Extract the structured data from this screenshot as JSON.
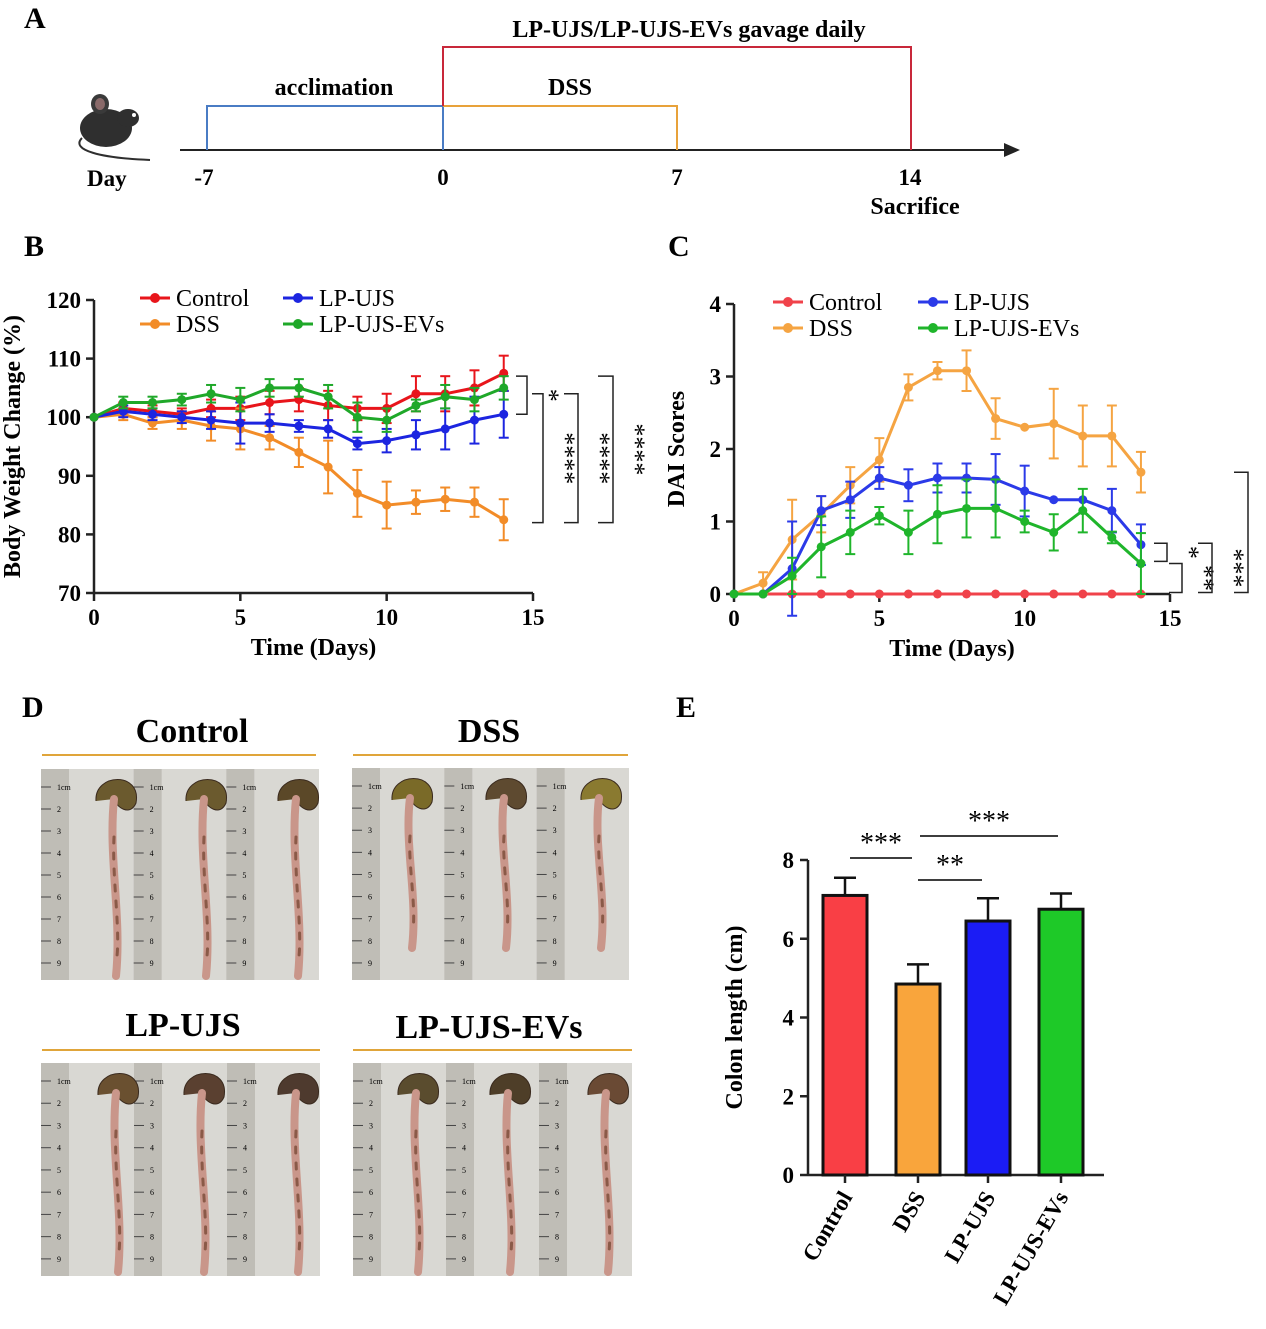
{
  "panelA": {
    "label": "A",
    "gavage": "LP-UJS/LP-UJS-EVs gavage daily",
    "acclimation": "acclimation",
    "dss": "DSS",
    "day": "Day",
    "ticks": [
      "-7",
      "0",
      "7",
      "14"
    ],
    "sacrifice": "Sacrifice",
    "colors": {
      "acclimation": "#4a7cc4",
      "dss": "#e8a23a",
      "gavage": "#c8283a"
    }
  },
  "panelD": {
    "label": "D",
    "groups": [
      "Control",
      "DSS",
      "LP-UJS",
      "LP-UJS-EVs"
    ],
    "ruler_marks": [
      "1cm",
      "2",
      "3",
      "4",
      "5",
      "6",
      "7",
      "8",
      "9"
    ]
  },
  "chart_data": [
    {
      "panel": "B",
      "type": "line",
      "xlabel": "Time (Days)",
      "ylabel": "Body Weight Change (%)",
      "xlim": [
        0,
        15
      ],
      "ylim": [
        70,
        120
      ],
      "xticks": [
        0,
        5,
        10,
        15
      ],
      "yticks": [
        70,
        80,
        90,
        100,
        110,
        120
      ],
      "legend_placement": "top",
      "x": [
        0,
        1,
        2,
        3,
        4,
        5,
        6,
        7,
        8,
        9,
        10,
        11,
        12,
        13,
        14
      ],
      "series": [
        {
          "name": "Control",
          "color": "#e8151b",
          "values": [
            100,
            101.5,
            101,
            100.5,
            101.5,
            101.5,
            102.5,
            103,
            102,
            101.5,
            101.5,
            104,
            104,
            105,
            107.5
          ],
          "err": [
            0,
            1,
            1,
            1,
            1.5,
            2,
            2,
            2,
            2.5,
            2,
            2.5,
            3,
            3,
            3,
            3
          ]
        },
        {
          "name": "DSS",
          "color": "#f28c28",
          "values": [
            100,
            100.5,
            99,
            99.5,
            98.5,
            98,
            96.5,
            94,
            91.5,
            87,
            85,
            85.5,
            86,
            85.5,
            82.5
          ],
          "err": [
            0,
            1,
            1,
            1.5,
            2.5,
            3.5,
            2,
            2.5,
            4.5,
            4,
            4,
            2,
            2,
            2.5,
            3.5
          ]
        },
        {
          "name": "LP-UJS",
          "color": "#1c25e0",
          "values": [
            100,
            101,
            100.5,
            100,
            99.5,
            99,
            99,
            98.5,
            98,
            95.5,
            96,
            97,
            98,
            99.5,
            100.5
          ],
          "err": [
            0,
            1,
            1,
            1,
            1.5,
            3.5,
            1.5,
            1,
            1.5,
            1,
            2,
            2.5,
            3.5,
            4,
            4
          ]
        },
        {
          "name": "LP-UJS-EVs",
          "color": "#1fa829",
          "values": [
            100,
            102.5,
            102.5,
            103,
            104,
            103,
            105,
            105,
            103.5,
            100,
            99.5,
            102,
            103.5,
            103,
            105
          ],
          "err": [
            0,
            1,
            1,
            1,
            1.5,
            2,
            1.5,
            1.5,
            2,
            2.5,
            2,
            1,
            2,
            2,
            2
          ]
        }
      ],
      "significance": [
        "*",
        "****",
        "****",
        "****"
      ]
    },
    {
      "panel": "C",
      "type": "line",
      "xlabel": "Time (Days)",
      "ylabel": "DAI Scores",
      "xlim": [
        0,
        15
      ],
      "ylim": [
        0,
        4
      ],
      "xticks": [
        0,
        5,
        10,
        15
      ],
      "yticks": [
        0,
        1,
        2,
        3,
        4
      ],
      "legend_placement": "top",
      "x": [
        0,
        1,
        2,
        3,
        4,
        5,
        6,
        7,
        8,
        9,
        10,
        11,
        12,
        13,
        14
      ],
      "series": [
        {
          "name": "Control",
          "color": "#f0424a",
          "values": [
            0,
            0,
            0,
            0,
            0,
            0,
            0,
            0,
            0,
            0,
            0,
            0,
            0,
            0,
            0
          ],
          "err": [
            0,
            0,
            0,
            0,
            0,
            0,
            0,
            0,
            0,
            0,
            0,
            0,
            0,
            0,
            0
          ]
        },
        {
          "name": "DSS",
          "color": "#f5a442",
          "values": [
            0,
            0.15,
            0.75,
            1.1,
            1.5,
            1.85,
            2.85,
            3.08,
            3.08,
            2.42,
            2.3,
            2.35,
            2.18,
            2.18,
            1.68
          ],
          "err": [
            0,
            0.15,
            0.55,
            0.25,
            0.25,
            0.3,
            0.18,
            0.12,
            0.28,
            0.28,
            0,
            0.48,
            0.42,
            0.42,
            0.28
          ]
        },
        {
          "name": "LP-UJS",
          "color": "#2b3ae8",
          "values": [
            0,
            0,
            0.35,
            1.15,
            1.3,
            1.6,
            1.5,
            1.6,
            1.6,
            1.58,
            1.42,
            1.3,
            1.3,
            1.15,
            0.68
          ],
          "err": [
            0,
            0,
            0.65,
            0.2,
            0.25,
            0.15,
            0.22,
            0.2,
            0.2,
            0.35,
            0.35,
            0,
            0,
            0.3,
            0.28
          ]
        },
        {
          "name": "LP-UJS-EVs",
          "color": "#1fb52b",
          "values": [
            0,
            0,
            0.25,
            0.65,
            0.85,
            1.08,
            0.85,
            1.1,
            1.18,
            1.18,
            1.0,
            0.85,
            1.15,
            0.78,
            0.42
          ],
          "err": [
            0,
            0,
            0.25,
            0.42,
            0.3,
            0.12,
            0.3,
            0.4,
            0.4,
            0.4,
            0.15,
            0.25,
            0.3,
            0.08,
            0.42
          ]
        }
      ],
      "significance": [
        "*",
        "**",
        "***",
        "****"
      ]
    },
    {
      "panel": "E",
      "type": "bar",
      "ylabel": "Colon length (cm)",
      "ylim": [
        0,
        8
      ],
      "yticks": [
        0,
        2,
        4,
        6,
        8
      ],
      "categories": [
        "Control",
        "DSS",
        "LP-UJS",
        "LP-UJS-EVs"
      ],
      "values": [
        7.1,
        4.85,
        6.45,
        6.75
      ],
      "err": [
        0.45,
        0.5,
        0.58,
        0.4
      ],
      "colors": [
        "#f93f45",
        "#f9a53c",
        "#1b1cf5",
        "#1ec928"
      ],
      "significance": [
        {
          "from": "Control",
          "to": "DSS",
          "label": "***"
        },
        {
          "from": "DSS",
          "to": "LP-UJS",
          "label": "**"
        },
        {
          "from": "DSS",
          "to": "LP-UJS-EVs",
          "label": "***"
        }
      ]
    }
  ]
}
